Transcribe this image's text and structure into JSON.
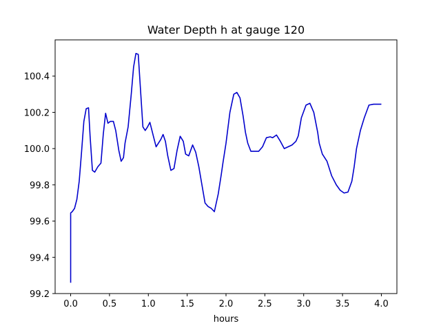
{
  "chart_data": {
    "type": "line",
    "title": "Water Depth h at gauge 120",
    "xlabel": "hours",
    "ylabel": "",
    "xlim": [
      -0.2,
      4.2
    ],
    "ylim": [
      99.2,
      100.6
    ],
    "xticks": [
      0.0,
      0.5,
      1.0,
      1.5,
      2.0,
      2.5,
      3.0,
      3.5,
      4.0
    ],
    "xtick_labels": [
      "0.0",
      "0.5",
      "1.0",
      "1.5",
      "2.0",
      "2.5",
      "3.0",
      "3.5",
      "4.0"
    ],
    "yticks": [
      99.2,
      99.4,
      99.6,
      99.8,
      100.0,
      100.2,
      100.4
    ],
    "ytick_labels": [
      "99.2",
      "99.4",
      "99.6",
      "99.8",
      "100.0",
      "100.2",
      "100.4"
    ],
    "grid": false,
    "series": [
      {
        "color": "#0000cc",
        "x": [
          0.0,
          0.0,
          0.02,
          0.05,
          0.08,
          0.11,
          0.14,
          0.17,
          0.2,
          0.23,
          0.25,
          0.28,
          0.31,
          0.35,
          0.39,
          0.42,
          0.45,
          0.48,
          0.51,
          0.55,
          0.58,
          0.62,
          0.65,
          0.68,
          0.7,
          0.74,
          0.78,
          0.81,
          0.84,
          0.87,
          0.9,
          0.93,
          0.96,
          0.99,
          1.02,
          1.07,
          1.1,
          1.13,
          1.16,
          1.19,
          1.22,
          1.25,
          1.29,
          1.33,
          1.37,
          1.41,
          1.45,
          1.48,
          1.52,
          1.57,
          1.61,
          1.65,
          1.69,
          1.73,
          1.77,
          1.81,
          1.85,
          1.9,
          1.94,
          1.96,
          2.0,
          2.05,
          2.1,
          2.14,
          2.18,
          2.22,
          2.25,
          2.28,
          2.32,
          2.37,
          2.42,
          2.47,
          2.52,
          2.57,
          2.6,
          2.65,
          2.7,
          2.75,
          2.8,
          2.85,
          2.9,
          2.93,
          2.97,
          3.03,
          3.08,
          3.13,
          3.18,
          3.2,
          3.24,
          3.3,
          3.36,
          3.42,
          3.47,
          3.52,
          3.57,
          3.62,
          3.65,
          3.68,
          3.73,
          3.78,
          3.84,
          3.9,
          3.95,
          4.0
        ],
        "y": [
          99.26,
          99.645,
          99.652,
          99.67,
          99.72,
          99.82,
          99.98,
          100.15,
          100.22,
          100.225,
          100.07,
          99.88,
          99.87,
          99.9,
          99.92,
          100.08,
          100.195,
          100.14,
          100.15,
          100.15,
          100.1,
          99.99,
          99.93,
          99.95,
          100.03,
          100.12,
          100.3,
          100.45,
          100.525,
          100.52,
          100.32,
          100.12,
          100.1,
          100.12,
          100.145,
          100.06,
          100.01,
          100.03,
          100.05,
          100.078,
          100.04,
          99.96,
          99.88,
          99.89,
          99.99,
          100.068,
          100.04,
          99.97,
          99.96,
          100.02,
          99.98,
          99.9,
          99.8,
          99.7,
          99.68,
          99.67,
          99.652,
          99.75,
          99.86,
          99.92,
          100.03,
          100.2,
          100.3,
          100.31,
          100.28,
          100.18,
          100.09,
          100.03,
          99.985,
          99.985,
          99.985,
          100.01,
          100.06,
          100.065,
          100.06,
          100.075,
          100.04,
          100.0,
          100.01,
          100.02,
          100.04,
          100.07,
          100.17,
          100.24,
          100.25,
          100.2,
          100.09,
          100.03,
          99.97,
          99.93,
          99.85,
          99.8,
          99.77,
          99.755,
          99.76,
          99.82,
          99.9,
          100.0,
          100.1,
          100.17,
          100.24,
          100.245,
          100.245,
          100.245
        ]
      }
    ]
  }
}
